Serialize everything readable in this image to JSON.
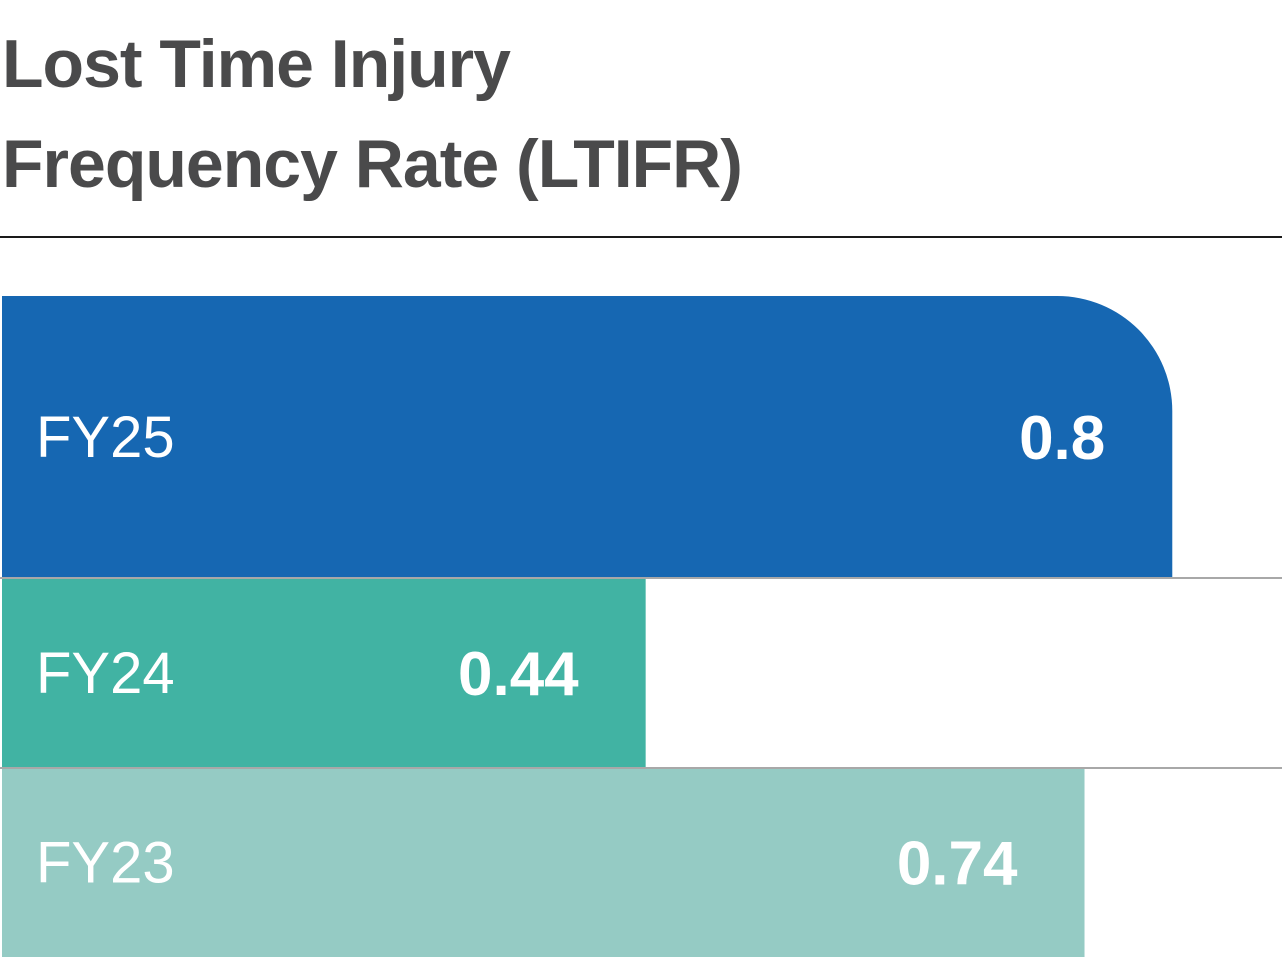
{
  "chart_data": {
    "type": "bar",
    "orientation": "horizontal",
    "title": "Lost Time Injury Frequency Rate (LTIFR)",
    "title_lines": [
      "Lost Time Injury",
      "Frequency Rate (LTIFR)"
    ],
    "categories": [
      "FY25",
      "FY24",
      "FY23"
    ],
    "values": [
      0.8,
      0.44,
      0.74
    ],
    "value_labels": [
      "0.8",
      "0.44",
      "0.74"
    ],
    "colors": [
      "#1667b2",
      "#41b3a3",
      "#95cbc4"
    ],
    "xlim": [
      0,
      0.875
    ],
    "grid": false,
    "legend": "none",
    "xlabel": "",
    "ylabel": ""
  }
}
